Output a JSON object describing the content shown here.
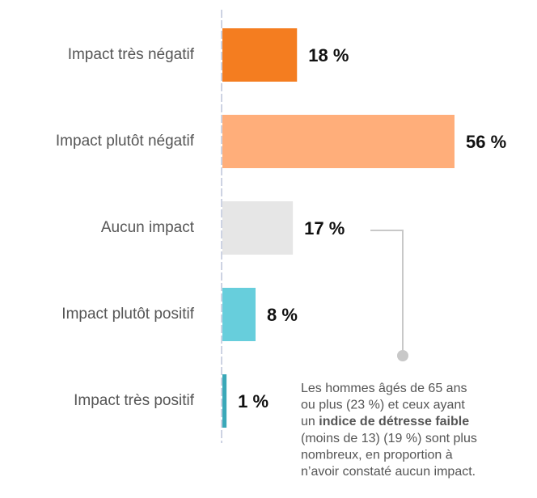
{
  "chart_data": {
    "type": "bar",
    "orientation": "horizontal",
    "categories": [
      "Impact très négatif",
      "Impact plutôt négatif",
      "Aucun impact",
      "Impact plutôt positif",
      "Impact très positif"
    ],
    "values": [
      18,
      56,
      17,
      8,
      1
    ],
    "value_labels": [
      "18 %",
      "56 %",
      "17 %",
      "8 %",
      "1 %"
    ],
    "colors": [
      "#f47d20",
      "#ffae7a",
      "#e6e6e6",
      "#67cedc",
      "#3aa8b8"
    ],
    "annotation": [
      [
        {
          "text": "Les hommes âgés de 65 ans",
          "bold": false
        }
      ],
      [
        {
          "text": "ou plus (23 %) et ceux ayant",
          "bold": false
        }
      ],
      [
        {
          "text": "un ",
          "bold": false
        },
        {
          "text": "indice de détresse faible",
          "bold": true
        }
      ],
      [
        {
          "text": "(moins de 13) (19 %) sont plus",
          "bold": false
        }
      ],
      [
        {
          "text": "nombreux, en proportion à",
          "bold": false
        }
      ],
      [
        {
          "text": "n’avoir constaté aucun impact.",
          "bold": false
        }
      ]
    ]
  }
}
